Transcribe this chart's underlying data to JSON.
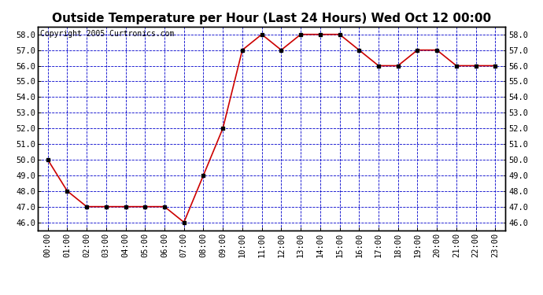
{
  "title": "Outside Temperature per Hour (Last 24 Hours) Wed Oct 12 00:00",
  "copyright": "Copyright 2005 Curtronics.com",
  "hours": [
    "00:00",
    "01:00",
    "02:00",
    "03:00",
    "04:00",
    "05:00",
    "06:00",
    "07:00",
    "08:00",
    "09:00",
    "10:00",
    "11:00",
    "12:00",
    "13:00",
    "14:00",
    "15:00",
    "16:00",
    "17:00",
    "18:00",
    "19:00",
    "20:00",
    "21:00",
    "22:00",
    "23:00"
  ],
  "temperatures": [
    50.0,
    48.0,
    47.0,
    47.0,
    47.0,
    47.0,
    47.0,
    46.0,
    49.0,
    52.0,
    57.0,
    58.0,
    57.0,
    58.0,
    58.0,
    58.0,
    57.0,
    56.0,
    56.0,
    57.0,
    57.0,
    56.0,
    56.0,
    56.0
  ],
  "ylim": [
    45.5,
    58.5
  ],
  "yticks": [
    46.0,
    47.0,
    48.0,
    49.0,
    50.0,
    51.0,
    52.0,
    53.0,
    54.0,
    55.0,
    56.0,
    57.0,
    58.0
  ],
  "line_color": "#cc0000",
  "marker_color": "#000000",
  "grid_color": "#0000cc",
  "background_color": "#ffffff",
  "plot_bg_color": "#ffffff",
  "title_fontsize": 11,
  "copyright_fontsize": 7,
  "tick_fontsize": 7.5
}
